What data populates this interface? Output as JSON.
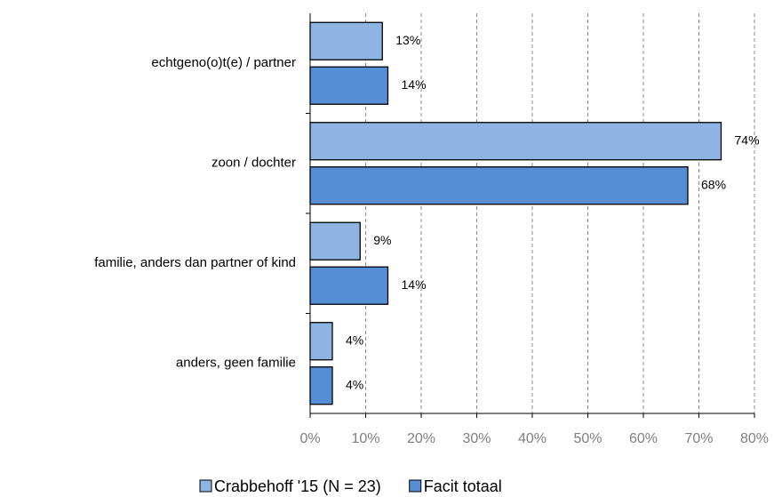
{
  "chart_data": {
    "type": "bar",
    "orientation": "horizontal",
    "categories": [
      "echtgeno(o)t(e) / partner",
      "zoon / dochter",
      "familie, anders dan partner of kind",
      "anders, geen familie"
    ],
    "series": [
      {
        "name": "Crabbehoff '15 (N = 23)",
        "color": "#8eb4e3",
        "values": [
          13,
          74,
          9,
          4
        ],
        "value_labels": [
          "13%",
          "74%",
          "9%",
          "4%"
        ]
      },
      {
        "name": "Facit totaal",
        "color": "#558ed5",
        "values": [
          14,
          68,
          14,
          4
        ],
        "value_labels": [
          "14%",
          "68%",
          "14%",
          "4%"
        ]
      }
    ],
    "xlim": [
      0,
      80
    ],
    "xticks": [
      {
        "value": 0,
        "label": "0%"
      },
      {
        "value": 10,
        "label": "10%"
      },
      {
        "value": 20,
        "label": "20%"
      },
      {
        "value": 30,
        "label": "30%"
      },
      {
        "value": 40,
        "label": "40%"
      },
      {
        "value": 50,
        "label": "50%"
      },
      {
        "value": 60,
        "label": "60%"
      },
      {
        "value": 70,
        "label": "70%"
      },
      {
        "value": 80,
        "label": "80%"
      }
    ],
    "grid": true,
    "legend": "bottom"
  }
}
